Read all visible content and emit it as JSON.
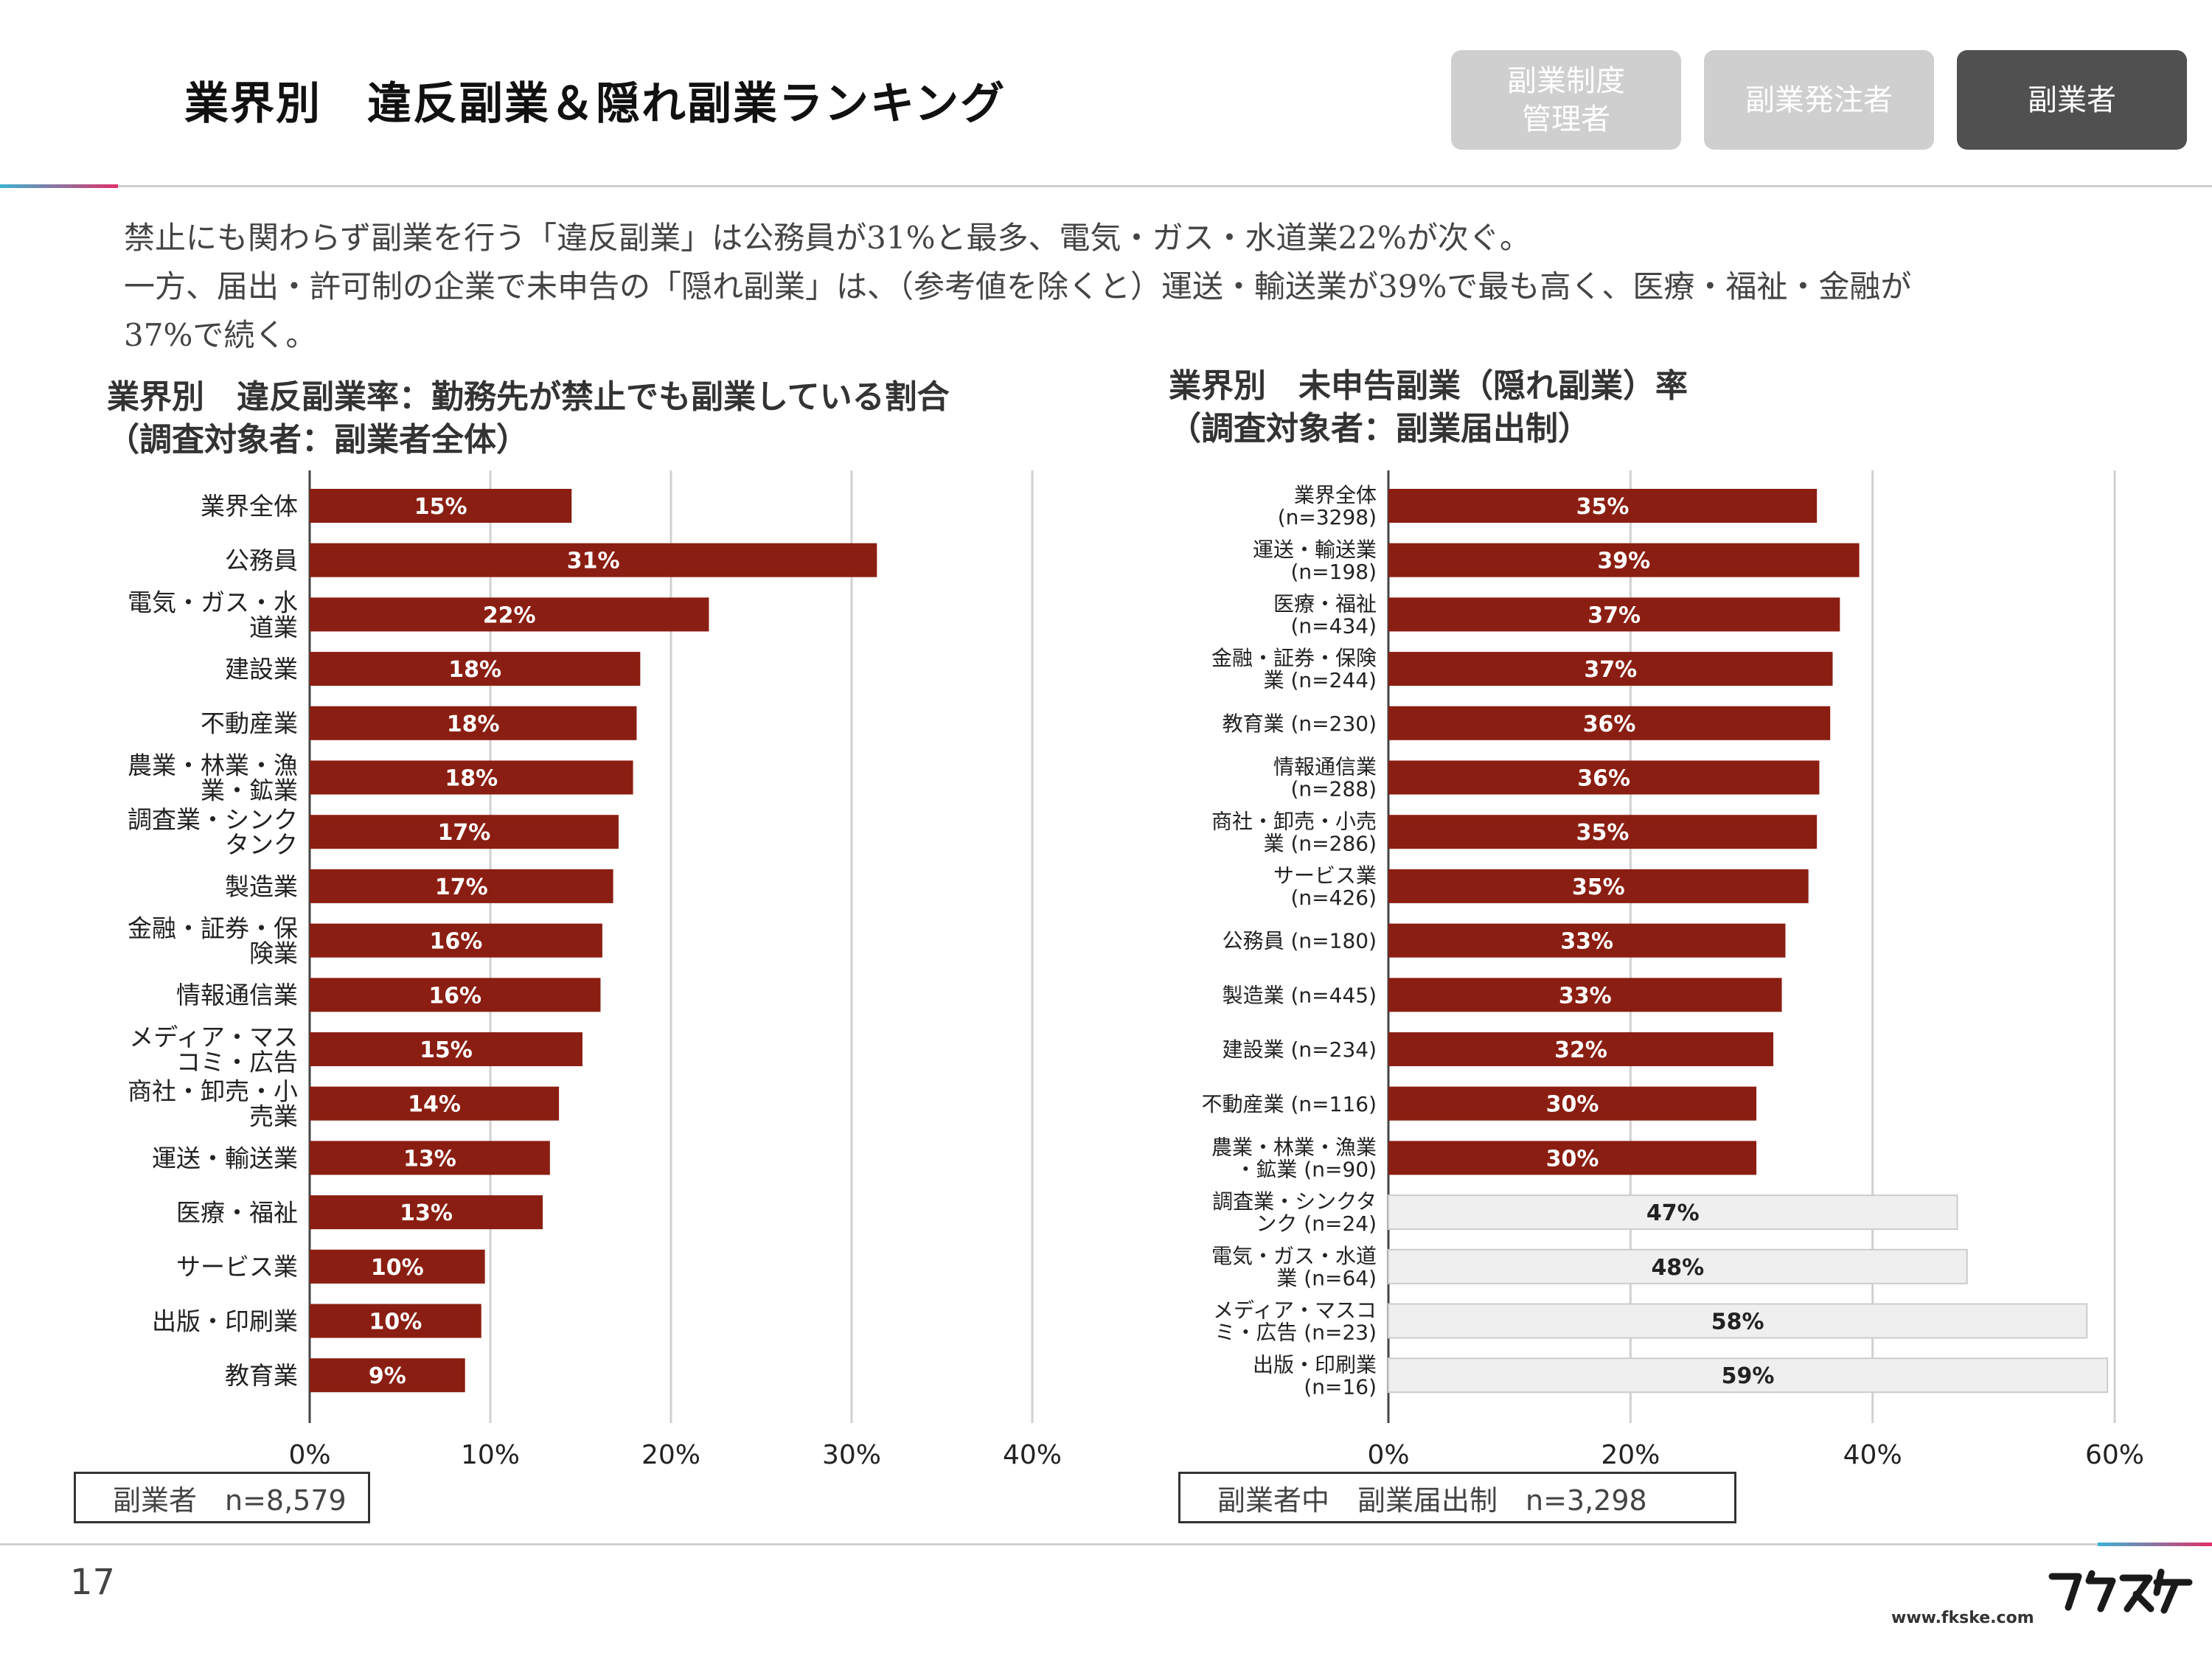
{
  "header": {
    "title": "業界別　違反副業＆隠れ副業ランキング",
    "tabs": [
      {
        "label": "副業制度\n管理者",
        "active": false
      },
      {
        "label": "副業発注者",
        "active": false
      },
      {
        "label": "副業者",
        "active": true
      }
    ]
  },
  "lead": {
    "lines": [
      "禁止にも関わらず副業を行う「違反副業」は公務員が31%と最多、電気・ガス・水道業22%が次ぐ。",
      "一方、届出・許可制の企業で未申告の「隠れ副業」は、（参考値を除くと）運送・輸送業が39%で最も高く、医療・福祉・金融が",
      "37%で続く。"
    ]
  },
  "chart_data": [
    {
      "type": "bar",
      "orientation": "horizontal",
      "title": "業界別　違反副業率：勤務先が禁止でも副業している割合\n（調査対象者：副業者全体）",
      "categories": [
        "業界全体",
        "公務員",
        "電気・ガス・水\n道業",
        "建設業",
        "不動産業",
        "農業・林業・漁\n業・鉱業",
        "調査業・シンク\nタンク",
        "製造業",
        "金融・証券・保\n険業",
        "情報通信業",
        "メディア・マス\nコミ・広告",
        "商社・卸売・小\n売業",
        "運送・輸送業",
        "医療・福祉",
        "サービス業",
        "出版・印刷業",
        "教育業"
      ],
      "values": [
        14.5,
        31.4,
        22.1,
        18.3,
        18.1,
        17.9,
        17.1,
        16.8,
        16.2,
        16.1,
        15.1,
        13.8,
        13.3,
        12.9,
        9.7,
        9.5,
        8.6
      ],
      "value_labels": [
        "15%",
        "31%",
        "22%",
        "18%",
        "18%",
        "18%",
        "17%",
        "17%",
        "16%",
        "16%",
        "15%",
        "14%",
        "13%",
        "13%",
        "10%",
        "10%",
        "9%"
      ],
      "highlight": [
        true,
        true,
        true,
        true,
        true,
        true,
        true,
        true,
        true,
        true,
        true,
        true,
        true,
        true,
        true,
        true,
        true
      ],
      "xlim": [
        0,
        40
      ],
      "xticks": [
        "0%",
        "10%",
        "20%",
        "30%",
        "40%"
      ],
      "grid": true,
      "note": "副業者　n=8,579"
    },
    {
      "type": "bar",
      "orientation": "horizontal",
      "title": "業界別　未申告副業（隠れ副業）率\n（調査対象者：副業届出制）",
      "categories": [
        "業界全体\n(n=3298)",
        "運送・輸送業\n(n=198)",
        "医療・福祉\n(n=434)",
        "金融・証券・保険\n業 (n=244)",
        "教育業 (n=230)",
        "情報通信業\n(n=288)",
        "商社・卸売・小売\n業 (n=286)",
        "サービス業\n(n=426)",
        "公務員 (n=180)",
        "製造業 (n=445)",
        "建設業 (n=234)",
        "不動産業 (n=116)",
        "農業・林業・漁業\n・鉱業 (n=90)",
        "調査業・シンクタ\nンク (n=24)",
        "電気・ガス・水道\n業 (n=64)",
        "メディア・マスコ\nミ・広告 (n=23)",
        "出版・印刷業\n(n=16)"
      ],
      "values": [
        35.4,
        38.9,
        37.3,
        36.7,
        36.5,
        35.6,
        35.4,
        34.7,
        32.8,
        32.5,
        31.8,
        30.4,
        30.4,
        47.0,
        47.8,
        57.7,
        59.4
      ],
      "value_labels": [
        "35%",
        "39%",
        "37%",
        "37%",
        "36%",
        "36%",
        "35%",
        "35%",
        "33%",
        "33%",
        "32%",
        "30%",
        "30%",
        "47%",
        "48%",
        "58%",
        "59%"
      ],
      "highlight": [
        true,
        true,
        true,
        true,
        true,
        true,
        true,
        true,
        true,
        true,
        true,
        true,
        true,
        false,
        false,
        false,
        false
      ],
      "xlim": [
        0,
        60
      ],
      "xticks": [
        "0%",
        "20%",
        "40%",
        "60%"
      ],
      "grid": true,
      "note": "副業者中　副業届出制　n=3,298"
    }
  ],
  "colors": {
    "bar": "#8b1e12",
    "bar_reference": "#efefef",
    "bar_reference_border": "#cccccc",
    "label_on_bar": "#ffffff",
    "label_on_reference": "#222222",
    "grid": "#d0d0d0",
    "tab_inactive": "#cfcfcf",
    "tab_active": "#505050"
  },
  "footer": {
    "page_number": "17",
    "url": "www.fkske.com",
    "logo": "フクスケ"
  }
}
